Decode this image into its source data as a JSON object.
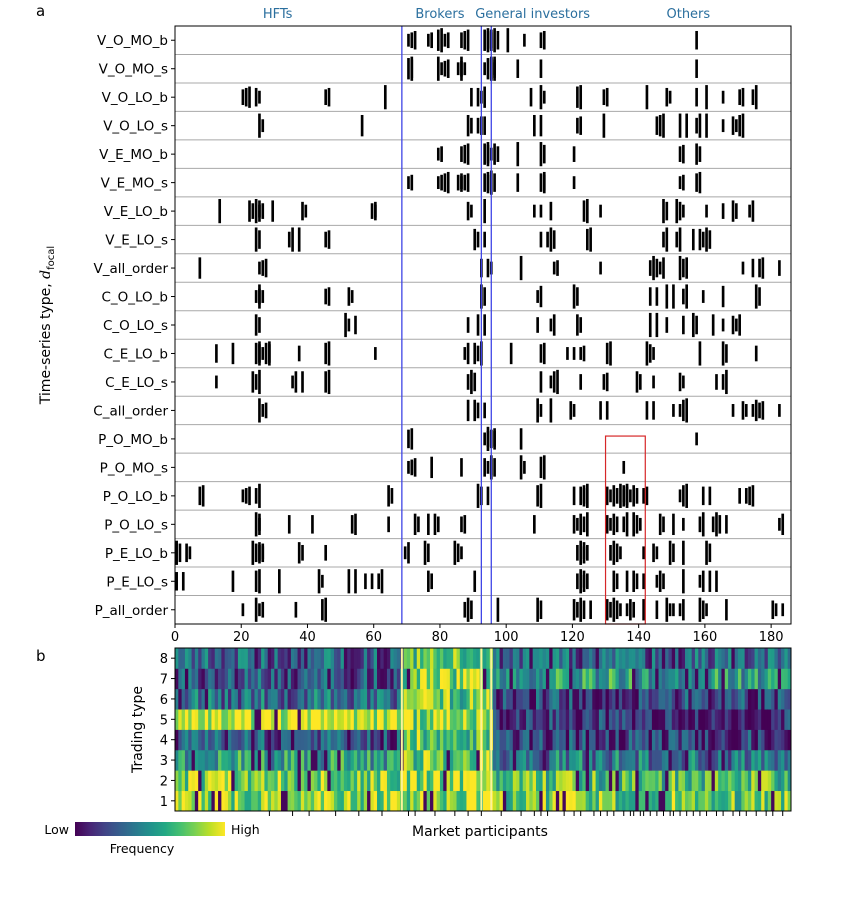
{
  "figure": {
    "panel_a_letter": "a",
    "panel_b_letter": "b"
  },
  "chart_data": [
    {
      "type": "heatmap",
      "panel": "a",
      "ylabel": "Time-series type, d_focal",
      "ylabel_main": "Time-series type, ",
      "ylabel_symbol": "d",
      "ylabel_subscript": "focal",
      "xlabel": "",
      "xlim": [
        0,
        186
      ],
      "x_ticks": [
        0,
        20,
        40,
        60,
        80,
        100,
        120,
        140,
        160,
        180
      ],
      "x_tick_labels": [
        "0",
        "20",
        "40",
        "60",
        "80",
        "100",
        "120",
        "140",
        "160",
        "180"
      ],
      "groups": [
        {
          "label": "HFTs",
          "center": 31
        },
        {
          "label": "Brokers",
          "center": 80
        },
        {
          "label": "General investors",
          "center": 108
        },
        {
          "label": "Others",
          "center": 155
        }
      ],
      "group_boundaries": [
        68.5,
        92.5,
        95.5
      ],
      "highlight_box": {
        "x0": 130,
        "x1": 142,
        "row_from": 15,
        "row_to": 20
      },
      "colors": {
        "mark": "#000000",
        "row_separator": "#a8a8a8",
        "boundary_line": "#3f45e6",
        "highlight": "#d62728"
      },
      "rows": [
        {
          "label": "V_O_MO_b",
          "cols": [
            70,
            70,
            70,
            76,
            76,
            79,
            79,
            79,
            79,
            86,
            86,
            86,
            93,
            93,
            94,
            94,
            95,
            96,
            97,
            100,
            105,
            110,
            110,
            157
          ]
        },
        {
          "label": "V_O_MO_s",
          "cols": [
            70,
            70,
            71,
            79,
            79,
            79,
            79,
            85,
            85,
            86,
            86,
            93,
            94,
            94,
            94,
            95,
            95,
            96,
            103,
            110,
            157
          ]
        },
        {
          "label": "V_O_LO_b",
          "cols": [
            20,
            20,
            20,
            24,
            25,
            45,
            45,
            63,
            89,
            91,
            92,
            93,
            107,
            110,
            110,
            121,
            121,
            129,
            129,
            142,
            148,
            149,
            157,
            160,
            165,
            170,
            170,
            174,
            175
          ]
        },
        {
          "label": "V_O_LO_s",
          "cols": [
            25,
            25,
            56,
            88,
            89,
            91,
            91,
            93,
            108,
            110,
            121,
            121,
            129,
            145,
            145,
            145,
            152,
            154,
            157,
            158,
            160,
            165,
            168,
            169,
            170,
            170
          ]
        },
        {
          "label": "V_E_MO_b",
          "cols": [
            79,
            79,
            86,
            86,
            86,
            93,
            93,
            94,
            95,
            96,
            97,
            103,
            110,
            111,
            120,
            152,
            152,
            157,
            158
          ]
        },
        {
          "label": "V_E_MO_s",
          "cols": [
            70,
            70,
            79,
            79,
            79,
            79,
            85,
            85,
            86,
            86,
            86,
            93,
            93,
            94,
            95,
            96,
            103,
            110,
            110,
            111,
            120,
            152,
            152,
            157,
            157
          ]
        },
        {
          "label": "V_E_LO_b",
          "cols": [
            13,
            22,
            23,
            24,
            24,
            25,
            26,
            29,
            38,
            39,
            59,
            59,
            60,
            88,
            89,
            93,
            108,
            110,
            113,
            123,
            123,
            128,
            147,
            148,
            151,
            152,
            153,
            160,
            165,
            168,
            169,
            173,
            174
          ]
        },
        {
          "label": "V_E_LO_s",
          "cols": [
            24,
            25,
            34,
            35,
            37,
            45,
            45,
            90,
            91,
            93,
            110,
            112,
            113,
            114,
            124,
            124,
            147,
            148,
            151,
            152,
            156,
            158,
            159,
            160,
            161
          ]
        },
        {
          "label": "V_all_order",
          "cols": [
            7,
            25,
            25,
            25,
            92,
            94,
            95,
            104,
            114,
            114,
            128,
            143,
            144,
            145,
            146,
            147,
            152,
            153,
            153,
            171,
            174,
            176,
            176,
            182
          ]
        },
        {
          "label": "C_O_LO_b",
          "cols": [
            24,
            24,
            25,
            25,
            45,
            45,
            52,
            53,
            92,
            93,
            109,
            110,
            120,
            121,
            143,
            145,
            148,
            150,
            153,
            154,
            159,
            165,
            175,
            176
          ]
        },
        {
          "label": "C_O_LO_s",
          "cols": [
            24,
            25,
            51,
            51,
            54,
            88,
            91,
            93,
            109,
            113,
            114,
            121,
            122,
            143,
            145,
            148,
            153,
            156,
            157,
            162,
            165,
            168,
            169,
            170
          ]
        },
        {
          "label": "C_E_LO_b",
          "cols": [
            12,
            17,
            24,
            24,
            25,
            26,
            27,
            27,
            28,
            37,
            45,
            45,
            60,
            87,
            88,
            90,
            91,
            92,
            101,
            110,
            110,
            118,
            120,
            122,
            122,
            130,
            130,
            142,
            143,
            144,
            158,
            165,
            166,
            175
          ]
        },
        {
          "label": "C_E_LO_s",
          "cols": [
            12,
            23,
            24,
            25,
            35,
            36,
            38,
            45,
            45,
            88,
            89,
            90,
            110,
            113,
            114,
            114,
            122,
            129,
            129,
            139,
            140,
            144,
            152,
            153,
            163,
            165,
            166
          ]
        },
        {
          "label": "C_all_order",
          "cols": [
            25,
            25,
            25,
            88,
            90,
            91,
            93,
            109,
            109,
            113,
            119,
            120,
            128,
            130,
            142,
            144,
            150,
            152,
            153,
            153,
            168,
            171,
            172,
            174,
            175,
            176,
            176,
            182
          ]
        },
        {
          "label": "P_O_MO_b",
          "cols": [
            70,
            70,
            93,
            93,
            94,
            95,
            95,
            96,
            104,
            157
          ]
        },
        {
          "label": "P_O_MO_s",
          "cols": [
            70,
            70,
            70,
            71,
            77,
            86,
            93,
            94,
            94,
            95,
            96,
            104,
            104,
            110,
            110,
            135
          ]
        },
        {
          "label": "P_O_LO_b",
          "cols": [
            7,
            7,
            20,
            20,
            20,
            24,
            25,
            64,
            65,
            91,
            92,
            94,
            109,
            109,
            120,
            122,
            122,
            123,
            124,
            130,
            131,
            132,
            133,
            134,
            134,
            135,
            135,
            136,
            137,
            138,
            139,
            141,
            141,
            152,
            153,
            153,
            159,
            161,
            170,
            172,
            172,
            172
          ]
        },
        {
          "label": "P_O_LO_s",
          "cols": [
            24,
            24,
            25,
            34,
            41,
            53,
            53,
            64,
            72,
            73,
            76,
            78,
            79,
            86,
            86,
            108,
            120,
            121,
            122,
            123,
            124,
            130,
            131,
            132,
            133,
            135,
            136,
            138,
            139,
            140,
            146,
            147,
            150,
            153,
            158,
            159,
            162,
            163,
            164,
            166,
            182,
            183
          ]
        },
        {
          "label": "P_E_LO_b",
          "cols": [
            0,
            1,
            3,
            4,
            23,
            24,
            24,
            25,
            25,
            26,
            37,
            38,
            45,
            69,
            70,
            75,
            76,
            84,
            85,
            86,
            121,
            122,
            122,
            123,
            124,
            131,
            132,
            133,
            134,
            141,
            144,
            145,
            149,
            150,
            153,
            160,
            161
          ]
        },
        {
          "label": "P_E_LO_s",
          "cols": [
            0,
            2,
            17,
            24,
            24,
            31,
            43,
            43,
            52,
            54,
            57,
            59,
            61,
            62,
            76,
            77,
            90,
            121,
            122,
            122,
            123,
            124,
            132,
            133,
            136,
            138,
            139,
            141,
            145,
            146,
            147,
            153,
            158,
            159,
            161,
            163
          ]
        },
        {
          "label": "P_all_order",
          "cols": [
            20,
            24,
            24,
            24,
            36,
            44,
            44,
            87,
            88,
            89,
            97,
            109,
            110,
            120,
            121,
            122,
            123,
            125,
            130,
            131,
            132,
            133,
            134,
            136,
            137,
            138,
            141,
            145,
            148,
            148,
            150,
            152,
            153,
            158,
            159,
            160,
            166,
            180,
            181,
            183
          ]
        }
      ]
    },
    {
      "type": "heatmap",
      "panel": "b",
      "xlabel": "Market participants",
      "ylabel": "Trading type",
      "y_ticks": [
        1,
        2,
        3,
        4,
        5,
        6,
        7,
        8
      ],
      "x_count": 186,
      "colorbar": {
        "label": "Frequency",
        "low_label": "Low",
        "high_label": "High",
        "colormap": "viridis",
        "stops": [
          "#440154",
          "#482475",
          "#414487",
          "#355f8d",
          "#2a788e",
          "#21918c",
          "#22a884",
          "#44bf70",
          "#7ad151",
          "#bddf26",
          "#fde725"
        ]
      },
      "group_boundaries": [
        68.5,
        92.5,
        95.5
      ],
      "participant_ticks": [
        28,
        35,
        40,
        48,
        55,
        62,
        70,
        72,
        78,
        84,
        88,
        92,
        98,
        104,
        108,
        110,
        112,
        117,
        120,
        122,
        126,
        128,
        130,
        132,
        135,
        137,
        138,
        140,
        141,
        143,
        145,
        147,
        149,
        150,
        152,
        154,
        156,
        158,
        160,
        163,
        165,
        168,
        170,
        172,
        175,
        178,
        180,
        183
      ],
      "group_profiles": [
        {
          "label": "HFTs",
          "from": 0,
          "to": 68,
          "levels": [
            0.85,
            0.82,
            0.55,
            0.25,
            0.95,
            0.35,
            0.25,
            0.3
          ]
        },
        {
          "label": "Brokers",
          "from": 69,
          "to": 92,
          "levels": [
            0.85,
            0.85,
            0.75,
            0.75,
            0.8,
            0.75,
            0.8,
            0.7
          ]
        },
        {
          "label": "General investors",
          "from": 93,
          "to": 95,
          "levels": [
            0.9,
            0.9,
            0.8,
            0.8,
            0.85,
            0.8,
            0.85,
            0.75
          ]
        },
        {
          "label": "Others",
          "from": 96,
          "to": 185,
          "levels": [
            0.75,
            0.7,
            0.4,
            0.2,
            0.15,
            0.2,
            0.55,
            0.3
          ]
        }
      ]
    }
  ]
}
